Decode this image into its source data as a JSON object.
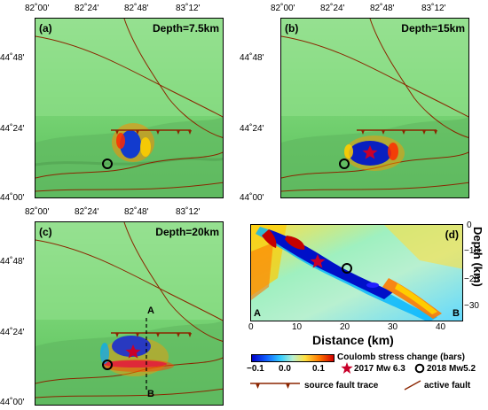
{
  "panels": [
    {
      "id": "a",
      "label": "(a)",
      "depth": "Depth=7.5km"
    },
    {
      "id": "b",
      "label": "(b)",
      "depth": "Depth=15km"
    },
    {
      "id": "c",
      "label": "(c)",
      "depth": "Depth=20km"
    },
    {
      "id": "d",
      "label": "(d)"
    }
  ],
  "lon_ticks": [
    "82˚00'",
    "82˚24'",
    "82˚48'",
    "83˚12'"
  ],
  "lat_ticks": [
    "44˚48'",
    "44˚24'",
    "44˚00'"
  ],
  "profile": {
    "start": "A",
    "end": "B"
  },
  "section": {
    "xlabel": "Distance (km)",
    "ylabel": "Depth (km)",
    "x_ticks": [
      "0",
      "10",
      "20",
      "30",
      "40"
    ],
    "y_ticks": [
      "0",
      "−10",
      "−20",
      "−30"
    ],
    "corner_a": "A",
    "corner_b": "B"
  },
  "legend": {
    "colorbar_title": "Coulomb stress change (bars)",
    "colorbar_ticks": [
      "−0.1",
      "0.0",
      "0.1"
    ],
    "mainshock": "2017 Mw 6.3",
    "aftershock": "2018 Mw5.2",
    "source_fault": "source fault trace",
    "active_fault": "active fault"
  },
  "colors": {
    "map_green": "#7fd77a",
    "fault": "#8b2500",
    "positive": "#d10000",
    "negative": "#0000c8",
    "star": "#c8002a"
  },
  "icons": [
    "star-icon",
    "circle-icon",
    "triangle-marker-icon"
  ]
}
